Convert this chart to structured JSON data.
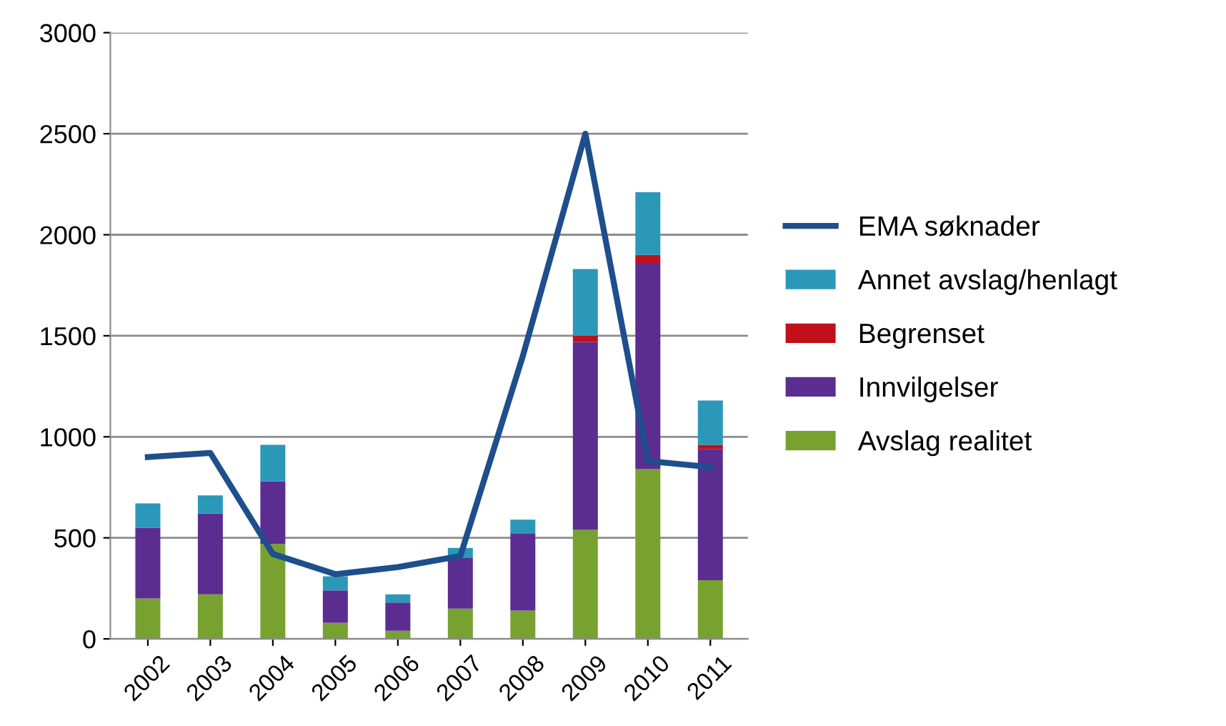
{
  "chart_data": {
    "type": "bar",
    "stacked": true,
    "categories": [
      "2002",
      "2003",
      "2004",
      "2005",
      "2006",
      "2007",
      "2008",
      "2009",
      "2010",
      "2011"
    ],
    "series": [
      {
        "name": "Avslag realitet",
        "color": "#77a22f",
        "values": [
          200,
          220,
          470,
          80,
          40,
          150,
          140,
          540,
          840,
          290
        ]
      },
      {
        "name": "Innvilgelser",
        "color": "#5b2d90",
        "values": [
          350,
          400,
          310,
          160,
          140,
          250,
          380,
          930,
          1020,
          650
        ]
      },
      {
        "name": "Begrenset",
        "color": "#c0101a",
        "values": [
          0,
          0,
          0,
          0,
          0,
          0,
          0,
          30,
          40,
          20
        ]
      },
      {
        "name": "Annet avslag/henlagt",
        "color": "#2c98b8",
        "values": [
          120,
          90,
          180,
          70,
          40,
          50,
          70,
          330,
          310,
          220
        ]
      },
      {
        "name": "EMA søknader",
        "type": "line",
        "color": "#1f4e8c",
        "values": [
          900,
          920,
          420,
          320,
          355,
          410,
          1400,
          2500,
          880,
          850
        ]
      }
    ],
    "ylim": [
      0,
      3000
    ],
    "yticks": [
      0,
      500,
      1000,
      1500,
      2000,
      2500,
      3000
    ],
    "grid": "y",
    "legend": "right"
  }
}
